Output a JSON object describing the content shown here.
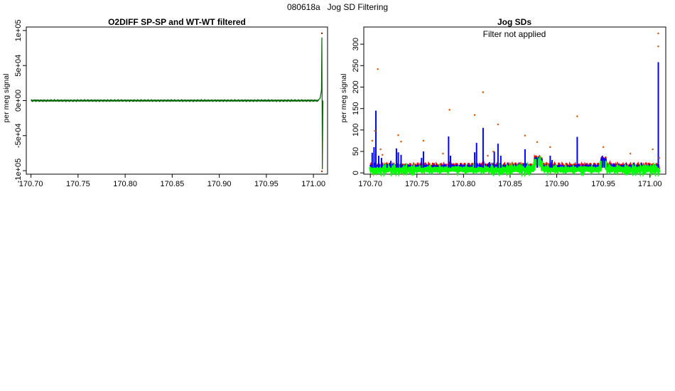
{
  "page": {
    "title": "080618a   Jog SD Filtering"
  },
  "colors": {
    "dark_green": "#006400",
    "light_green": "#00ff00",
    "blue": "#0000ff",
    "red": "#ff0000",
    "orange": "#d2691e",
    "dark": "#000000"
  },
  "chart_data": [
    {
      "type": "line",
      "title": "O2DIFF SP-SP and WT-WT filtered",
      "xlabel": "",
      "ylabel": "per meg signal",
      "xlim": [
        170.695,
        171.015
      ],
      "ylim": [
        -105000,
        105000
      ],
      "xticks": [
        170.7,
        170.75,
        170.8,
        170.85,
        170.9,
        170.95,
        171.0
      ],
      "xtick_labels": [
        "170.70",
        "170.75",
        "170.80",
        "170.85",
        "170.90",
        "170.95",
        "171.00"
      ],
      "yticks": [
        -100000,
        -50000,
        0,
        50000,
        100000
      ],
      "ytick_labels": [
        "-1e+05",
        "-5e+04",
        "0e+00",
        "5e+04",
        "1e+05"
      ],
      "series": [
        {
          "color": "#006400",
          "x": [
            170.7,
            170.705,
            170.71,
            170.75,
            170.8,
            170.85,
            170.9,
            170.95,
            171.0,
            171.005,
            171.006,
            171.007,
            171.008,
            171.0085,
            171.009,
            171.0095,
            171.01
          ],
          "y": [
            0,
            800,
            -500,
            0,
            0,
            0,
            0,
            0,
            0,
            0,
            2000,
            3000,
            10000,
            15000,
            90000,
            -98000,
            0
          ]
        }
      ],
      "outliers": {
        "x": [
          171.009,
          171.009
        ],
        "y": [
          96000,
          -101000
        ]
      }
    },
    {
      "type": "line",
      "title": "Jog SDs",
      "annotation": "Filter not applied",
      "xlabel": "",
      "ylabel": "per meg signal",
      "xlim": [
        170.693,
        171.017
      ],
      "ylim": [
        -3,
        340
      ],
      "xticks": [
        170.7,
        170.75,
        170.8,
        170.85,
        170.9,
        170.95,
        171.0
      ],
      "xtick_labels": [
        "170.70",
        "170.75",
        "170.80",
        "170.85",
        "170.90",
        "170.95",
        "171.00"
      ],
      "yticks": [
        0,
        50,
        100,
        150,
        200,
        250,
        300
      ],
      "ytick_labels": [
        "0",
        "50",
        "100",
        "150",
        "200",
        "250",
        "300"
      ],
      "spikes": {
        "color": "#0000ff",
        "x": [
          170.702,
          170.704,
          170.706,
          170.709,
          170.712,
          170.718,
          170.722,
          170.728,
          170.73,
          170.733,
          170.755,
          170.757,
          170.784,
          170.786,
          170.812,
          170.814,
          170.821,
          170.828,
          170.833,
          170.837,
          170.84,
          170.866,
          170.879,
          170.893,
          170.895,
          170.922,
          170.949,
          170.951,
          171.009
        ],
        "y": [
          47,
          60,
          145,
          40,
          35,
          20,
          28,
          57,
          48,
          42,
          35,
          50,
          85,
          40,
          48,
          70,
          105,
          25,
          50,
          68,
          40,
          55,
          35,
          40,
          30,
          84,
          40,
          35,
          258
        ]
      },
      "outliers": {
        "color": "#d2691e",
        "x": [
          170.702,
          170.705,
          170.708,
          170.711,
          170.713,
          170.73,
          170.733,
          170.757,
          170.778,
          170.785,
          170.812,
          170.821,
          170.826,
          170.832,
          170.837,
          170.866,
          170.879,
          170.893,
          170.922,
          170.95,
          170.979,
          171.003,
          171.009,
          171.009,
          171.01
        ],
        "y": [
          75,
          98,
          242,
          55,
          42,
          88,
          73,
          75,
          45,
          147,
          135,
          188,
          40,
          50,
          113,
          87,
          72,
          60,
          132,
          60,
          45,
          55,
          295,
          325,
          35
        ]
      },
      "baselines": [
        {
          "color": "#ff0000",
          "level": 16,
          "jitter": 5
        },
        {
          "color": "#0000ff",
          "level": 13,
          "jitter": 4
        },
        {
          "color": "#00ff00",
          "level": 8,
          "jitter": 4
        }
      ]
    }
  ]
}
